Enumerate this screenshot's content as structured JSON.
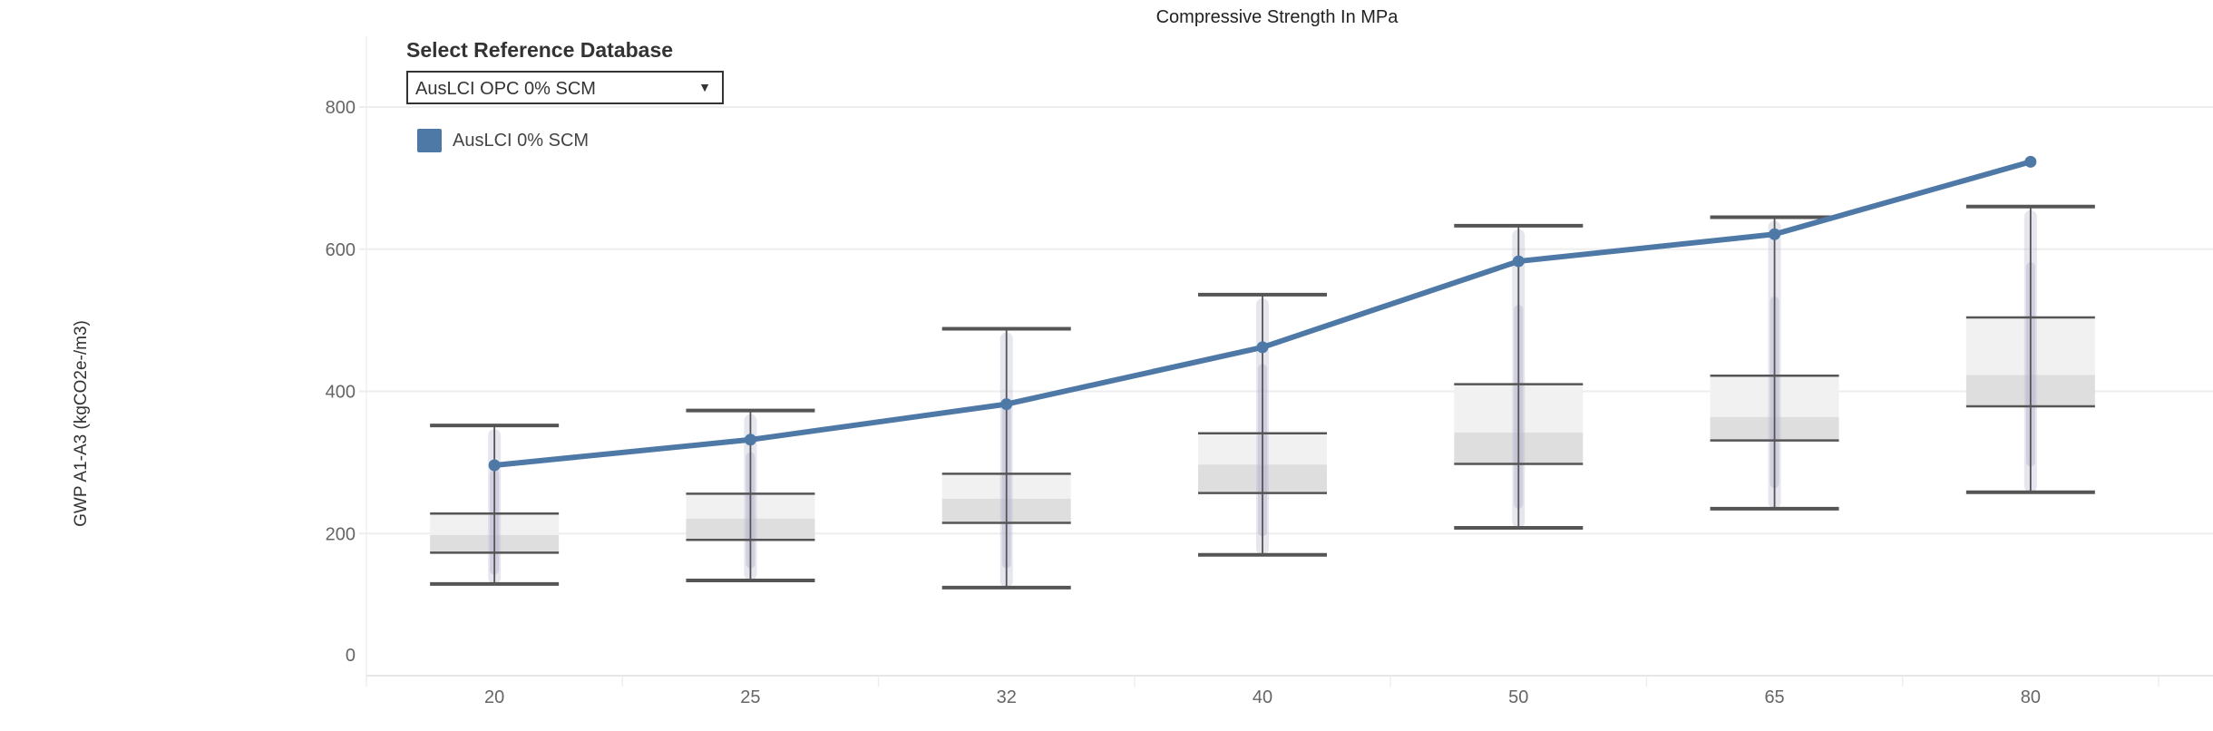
{
  "control": {
    "label": "Select Reference Database",
    "selected": "AusLCI OPC 0% SCM",
    "arrow_icon": "triangle-down-icon"
  },
  "chart_data": {
    "type": "box+line",
    "title": "Compressive Strength In MPa",
    "xlabel": "",
    "ylabel": "GWP A1-A3 (kgCO2e-/m3)",
    "ylim": [
      0,
      800
    ],
    "yticks": [
      0,
      200,
      400,
      600,
      800
    ],
    "grid": true,
    "legend_position": "top-left",
    "categories": [
      "20",
      "25",
      "32",
      "40",
      "50",
      "65",
      "80"
    ],
    "boxes": [
      {
        "low": 129,
        "q1": 173,
        "median": 198,
        "q3": 228,
        "high": 352
      },
      {
        "low": 134,
        "q1": 191,
        "median": 221,
        "q3": 256,
        "high": 373
      },
      {
        "low": 124,
        "q1": 215,
        "median": 249,
        "q3": 284,
        "high": 488
      },
      {
        "low": 170,
        "q1": 257,
        "median": 297,
        "q3": 341,
        "high": 536
      },
      {
        "low": 208,
        "q1": 298,
        "median": 342,
        "q3": 410,
        "high": 633
      },
      {
        "low": 235,
        "q1": 331,
        "median": 364,
        "q3": 422,
        "high": 645
      },
      {
        "low": 258,
        "q1": 379,
        "median": 423,
        "q3": 504,
        "high": 660
      }
    ],
    "series": [
      {
        "name": "AusLCI 0% SCM",
        "color": "#4e79a7",
        "values": [
          296,
          332,
          382,
          462,
          583,
          621,
          723
        ]
      }
    ],
    "colors": {
      "box_upper": "#f1f1f1",
      "box_lower": "#dedede",
      "whisker": "#555555",
      "jitter": "#b8b6d0",
      "grid": "#eeeeee"
    }
  }
}
